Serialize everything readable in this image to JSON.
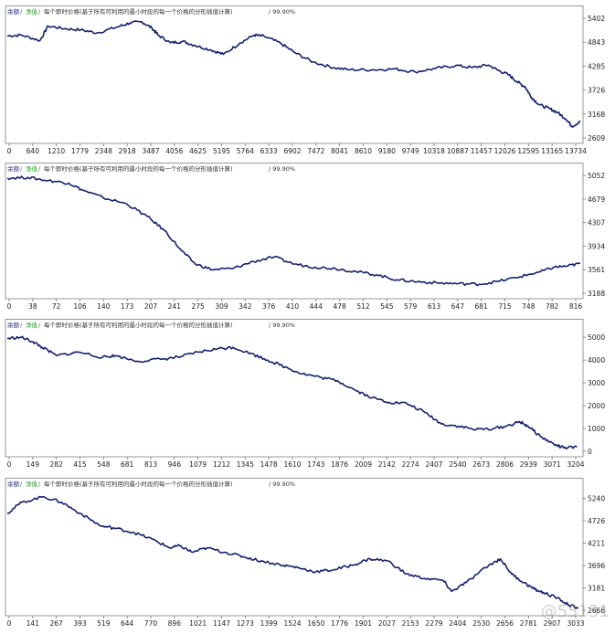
{
  "watermark": "@55131",
  "charts": [
    {
      "legend": {
        "balance": "余额",
        "equity": "净值",
        "model": "每个即时价格(基于所有可利用的最小时段的每一个价格的分形插值计算)",
        "quality": "99.90%"
      },
      "chart_data": {
        "type": "line",
        "x_ticks": [
          "0",
          "640",
          "1210",
          "1779",
          "2348",
          "2918",
          "3487",
          "4056",
          "4625",
          "5195",
          "5764",
          "6333",
          "6902",
          "7472",
          "8041",
          "8610",
          "9180",
          "9749",
          "10318",
          "10887",
          "11457",
          "12026",
          "12595",
          "13165",
          "13734"
        ],
        "y_ticks": [
          "5402",
          "4843",
          "4285",
          "3726",
          "3168",
          "2609"
        ],
        "ylim": [
          2609,
          5402
        ],
        "xlim": [
          0,
          14050
        ],
        "series": [
          {
            "values": [
              [
                0,
                4990
              ],
              [
                350,
                5010
              ],
              [
                800,
                4880
              ],
              [
                1000,
                5220
              ],
              [
                1400,
                5160
              ],
              [
                1800,
                5130
              ],
              [
                2200,
                5060
              ],
              [
                2700,
                5200
              ],
              [
                3000,
                5290
              ],
              [
                3300,
                5320
              ],
              [
                3550,
                5170
              ],
              [
                3700,
                5010
              ],
              [
                4000,
                4830
              ],
              [
                4300,
                4860
              ],
              [
                4600,
                4770
              ],
              [
                5000,
                4660
              ],
              [
                5300,
                4560
              ],
              [
                5700,
                4820
              ],
              [
                6050,
                5010
              ],
              [
                6300,
                4980
              ],
              [
                6700,
                4820
              ],
              [
                7050,
                4600
              ],
              [
                7500,
                4380
              ],
              [
                8000,
                4250
              ],
              [
                8400,
                4200
              ],
              [
                9000,
                4200
              ],
              [
                9500,
                4220
              ],
              [
                10000,
                4150
              ],
              [
                10500,
                4230
              ],
              [
                11000,
                4300
              ],
              [
                11400,
                4250
              ],
              [
                11800,
                4310
              ],
              [
                12050,
                4180
              ],
              [
                12300,
                4080
              ],
              [
                12500,
                3920
              ],
              [
                12700,
                3800
              ],
              [
                12850,
                3560
              ],
              [
                13050,
                3380
              ],
              [
                13300,
                3290
              ],
              [
                13500,
                3200
              ],
              [
                13700,
                3050
              ],
              [
                13850,
                2880
              ],
              [
                14050,
                2990
              ]
            ]
          }
        ]
      }
    },
    {
      "legend": {
        "balance": "余额",
        "equity": "净值",
        "model": "每个即时价格(基于所有可利用的最小时段的每一个价格的分形插值计算)",
        "quality": "99.90%"
      },
      "chart_data": {
        "type": "line",
        "x_ticks": [
          "0",
          "38",
          "72",
          "106",
          "140",
          "173",
          "207",
          "241",
          "275",
          "309",
          "342",
          "376",
          "410",
          "444",
          "478",
          "512",
          "545",
          "579",
          "613",
          "647",
          "681",
          "715",
          "748",
          "782",
          "816"
        ],
        "y_ticks": [
          "5052",
          "4679",
          "4307",
          "3934",
          "3561",
          "3188"
        ],
        "ylim": [
          3188,
          5052
        ],
        "xlim": [
          0,
          838
        ],
        "series": [
          {
            "values": [
              [
                0,
                5010
              ],
              [
                30,
                5020
              ],
              [
                60,
                4970
              ],
              [
                90,
                4930
              ],
              [
                110,
                4820
              ],
              [
                140,
                4700
              ],
              [
                175,
                4600
              ],
              [
                205,
                4400
              ],
              [
                230,
                4180
              ],
              [
                255,
                3860
              ],
              [
                275,
                3650
              ],
              [
                300,
                3560
              ],
              [
                330,
                3580
              ],
              [
                360,
                3690
              ],
              [
                390,
                3760
              ],
              [
                420,
                3650
              ],
              [
                450,
                3600
              ],
              [
                480,
                3580
              ],
              [
                510,
                3530
              ],
              [
                540,
                3480
              ],
              [
                570,
                3400
              ],
              [
                600,
                3370
              ],
              [
                630,
                3350
              ],
              [
                660,
                3340
              ],
              [
                690,
                3330
              ],
              [
                720,
                3380
              ],
              [
                750,
                3450
              ],
              [
                780,
                3530
              ],
              [
                800,
                3600
              ],
              [
                820,
                3620
              ],
              [
                838,
                3660
              ]
            ]
          }
        ]
      }
    },
    {
      "legend": {
        "balance": "余额",
        "equity": "净值",
        "model": "每个即时价格(基于所有可利用的最小时段的每一个价格的分形插值计算)",
        "quality": "99.90%"
      },
      "chart_data": {
        "type": "line",
        "x_ticks": [
          "0",
          "149",
          "282",
          "415",
          "548",
          "681",
          "813",
          "946",
          "1079",
          "1212",
          "1345",
          "1478",
          "1610",
          "1743",
          "1876",
          "2009",
          "2142",
          "2274",
          "2407",
          "2540",
          "2673",
          "2806",
          "2939",
          "3071",
          "3204"
        ],
        "y_ticks": [
          "5000",
          "4000",
          "3000",
          "2000",
          "1000",
          "0"
        ],
        "ylim": [
          0,
          5250
        ],
        "xlim": [
          0,
          3300
        ],
        "series": [
          {
            "values": [
              [
                0,
                4950
              ],
              [
                80,
                5000
              ],
              [
                149,
                4800
              ],
              [
                200,
                4560
              ],
              [
                282,
                4200
              ],
              [
                415,
                4350
              ],
              [
                548,
                4120
              ],
              [
                620,
                4200
              ],
              [
                750,
                3950
              ],
              [
                900,
                4050
              ],
              [
                1000,
                4150
              ],
              [
                1100,
                4350
              ],
              [
                1212,
                4500
              ],
              [
                1300,
                4560
              ],
              [
                1400,
                4300
              ],
              [
                1500,
                4000
              ],
              [
                1600,
                3700
              ],
              [
                1700,
                3400
              ],
              [
                1800,
                3250
              ],
              [
                1900,
                3100
              ],
              [
                2000,
                2700
              ],
              [
                2100,
                2350
              ],
              [
                2200,
                2150
              ],
              [
                2300,
                2100
              ],
              [
                2407,
                1700
              ],
              [
                2500,
                1200
              ],
              [
                2600,
                1100
              ],
              [
                2700,
                950
              ],
              [
                2806,
                1000
              ],
              [
                2900,
                1150
              ],
              [
                2950,
                1300
              ],
              [
                3000,
                1100
              ],
              [
                3071,
                650
              ],
              [
                3150,
                300
              ],
              [
                3204,
                150
              ],
              [
                3280,
                180
              ]
            ]
          }
        ]
      }
    },
    {
      "legend": {
        "balance": "余额",
        "equity": "净值",
        "model": "每个即时价格(基于所有可利用的最小时段的每一个价格的分形插值计算)",
        "quality": "99.90%"
      },
      "chart_data": {
        "type": "line",
        "x_ticks": [
          "0",
          "141",
          "267",
          "393",
          "519",
          "644",
          "770",
          "896",
          "1021",
          "1147",
          "1273",
          "1399",
          "1524",
          "1650",
          "1776",
          "1901",
          "2027",
          "2153",
          "2279",
          "2404",
          "2530",
          "2656",
          "2781",
          "2907",
          "3033"
        ],
        "y_ticks": [
          "5240",
          "4726",
          "4211",
          "3696",
          "3181",
          "2666"
        ],
        "ylim": [
          2666,
          5420
        ],
        "xlim": [
          0,
          3160
        ],
        "series": [
          {
            "values": [
              [
                0,
                4900
              ],
              [
                80,
                5150
              ],
              [
                200,
                5280
              ],
              [
                300,
                5150
              ],
              [
                400,
                4900
              ],
              [
                519,
                4600
              ],
              [
                600,
                4550
              ],
              [
                700,
                4450
              ],
              [
                800,
                4300
              ],
              [
                896,
                4100
              ],
              [
                950,
                4150
              ],
              [
                1021,
                4000
              ],
              [
                1100,
                4100
              ],
              [
                1200,
                4000
              ],
              [
                1300,
                3900
              ],
              [
                1399,
                3800
              ],
              [
                1524,
                3700
              ],
              [
                1600,
                3650
              ],
              [
                1700,
                3550
              ],
              [
                1800,
                3600
              ],
              [
                1901,
                3700
              ],
              [
                2000,
                3850
              ],
              [
                2100,
                3800
              ],
              [
                2200,
                3500
              ],
              [
                2300,
                3400
              ],
              [
                2404,
                3350
              ],
              [
                2450,
                3100
              ],
              [
                2530,
                3300
              ],
              [
                2656,
                3700
              ],
              [
                2720,
                3850
              ],
              [
                2781,
                3500
              ],
              [
                2850,
                3300
              ],
              [
                2907,
                3150
              ],
              [
                2970,
                3050
              ],
              [
                3033,
                2950
              ],
              [
                3100,
                2780
              ],
              [
                3150,
                2720
              ]
            ]
          }
        ]
      }
    }
  ]
}
